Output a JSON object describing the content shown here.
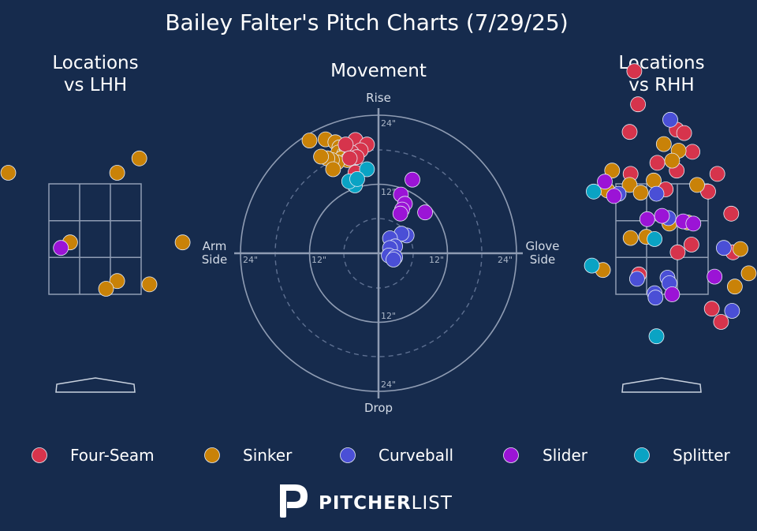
{
  "title": "Bailey Falter's Pitch Charts (7/29/25)",
  "panels": {
    "lhh_title": [
      "Locations",
      "vs LHH"
    ],
    "movement_title": "Movement",
    "rhh_title": [
      "Locations",
      "vs RHH"
    ]
  },
  "movement_labels": {
    "rise": "Rise",
    "drop": "Drop",
    "arm_side": [
      "Arm",
      "Side"
    ],
    "glove_side": [
      "Glove",
      "Side"
    ],
    "rings": [
      "12\"",
      "24\""
    ]
  },
  "colors": {
    "Four-Seam": "#d6344c",
    "Sinker": "#c98208",
    "Curveball": "#4a4fd6",
    "Slider": "#9b14d6",
    "Splitter": "#0aa3c4"
  },
  "legend": [
    "Four-Seam",
    "Sinker",
    "Curveball",
    "Slider",
    "Splitter"
  ],
  "brand": {
    "logo_icon": "pitcherlist-p-logo-icon",
    "part1": "PITCHER",
    "part2": "LIST"
  },
  "chart_data": [
    {
      "type": "scatter",
      "name": "locations-vs-lhh",
      "title": "Locations vs LHH",
      "zone": {
        "cols": 3,
        "rows": 3
      },
      "units": "zone widths from center (x), zone heights from center (y)",
      "points": [
        {
          "pitch": "Sinker",
          "x": -0.94,
          "y": 0.6
        },
        {
          "pitch": "Sinker",
          "x": 0.48,
          "y": 0.73
        },
        {
          "pitch": "Sinker",
          "x": 0.24,
          "y": 0.6
        },
        {
          "pitch": "Sinker",
          "x": -0.27,
          "y": -0.03
        },
        {
          "pitch": "Slider",
          "x": -0.37,
          "y": -0.08
        },
        {
          "pitch": "Sinker",
          "x": 0.95,
          "y": -0.03
        },
        {
          "pitch": "Sinker",
          "x": 0.24,
          "y": -0.38
        },
        {
          "pitch": "Sinker",
          "x": 0.12,
          "y": -0.45
        },
        {
          "pitch": "Sinker",
          "x": 0.59,
          "y": -0.41
        }
      ]
    },
    {
      "type": "scatter",
      "name": "movement",
      "title": "Movement",
      "units": "inches (x: arm side negative, glove side positive; y: rise positive)",
      "xlim": [
        -24,
        24
      ],
      "ylim": [
        -24,
        24
      ],
      "rings": [
        6,
        12,
        18,
        24
      ],
      "points": [
        {
          "pitch": "Sinker",
          "x": -12.0,
          "y": 19.6
        },
        {
          "pitch": "Sinker",
          "x": -9.2,
          "y": 19.8
        },
        {
          "pitch": "Sinker",
          "x": -7.5,
          "y": 19.3
        },
        {
          "pitch": "Sinker",
          "x": -6.8,
          "y": 18.4
        },
        {
          "pitch": "Sinker",
          "x": -7.0,
          "y": 17.5
        },
        {
          "pitch": "Sinker",
          "x": -6.0,
          "y": 17.2
        },
        {
          "pitch": "Sinker",
          "x": -5.5,
          "y": 18.1
        },
        {
          "pitch": "Sinker",
          "x": -6.4,
          "y": 16.5
        },
        {
          "pitch": "Sinker",
          "x": -5.4,
          "y": 16.2
        },
        {
          "pitch": "Sinker",
          "x": -4.7,
          "y": 16.7
        },
        {
          "pitch": "Sinker",
          "x": -7.2,
          "y": 15.8
        },
        {
          "pitch": "Sinker",
          "x": -8.1,
          "y": 16.2
        },
        {
          "pitch": "Sinker",
          "x": -8.9,
          "y": 16.5
        },
        {
          "pitch": "Sinker",
          "x": -10.0,
          "y": 16.8
        },
        {
          "pitch": "Sinker",
          "x": -7.9,
          "y": 14.6
        },
        {
          "pitch": "Sinker",
          "x": -4.5,
          "y": 17.5
        },
        {
          "pitch": "Four-Seam",
          "x": -4.0,
          "y": 19.7
        },
        {
          "pitch": "Four-Seam",
          "x": -2.0,
          "y": 18.9
        },
        {
          "pitch": "Four-Seam",
          "x": -3.1,
          "y": 17.9
        },
        {
          "pitch": "Four-Seam",
          "x": -4.7,
          "y": 17.5
        },
        {
          "pitch": "Four-Seam",
          "x": -5.7,
          "y": 18.9
        },
        {
          "pitch": "Four-Seam",
          "x": -3.8,
          "y": 16.7
        },
        {
          "pitch": "Four-Seam",
          "x": -5.0,
          "y": 16.5
        },
        {
          "pitch": "Four-Seam",
          "x": -4.0,
          "y": 14.0
        },
        {
          "pitch": "Splitter",
          "x": -2.0,
          "y": 14.6
        },
        {
          "pitch": "Splitter",
          "x": -4.1,
          "y": 11.8
        },
        {
          "pitch": "Splitter",
          "x": -5.1,
          "y": 12.5
        },
        {
          "pitch": "Splitter",
          "x": -3.7,
          "y": 12.9
        },
        {
          "pitch": "Slider",
          "x": 5.9,
          "y": 12.8
        },
        {
          "pitch": "Slider",
          "x": 3.9,
          "y": 10.2
        },
        {
          "pitch": "Slider",
          "x": 4.6,
          "y": 8.6
        },
        {
          "pitch": "Slider",
          "x": 4.1,
          "y": 7.6
        },
        {
          "pitch": "Slider",
          "x": 3.8,
          "y": 6.9
        },
        {
          "pitch": "Slider",
          "x": 8.1,
          "y": 7.1
        },
        {
          "pitch": "Curveball",
          "x": 4.9,
          "y": 3.1
        },
        {
          "pitch": "Curveball",
          "x": 4.0,
          "y": 3.4
        },
        {
          "pitch": "Curveball",
          "x": 2.0,
          "y": 2.6
        },
        {
          "pitch": "Curveball",
          "x": 2.9,
          "y": 1.2
        },
        {
          "pitch": "Curveball",
          "x": 2.0,
          "y": 0.9
        },
        {
          "pitch": "Curveball",
          "x": 1.8,
          "y": -0.4
        },
        {
          "pitch": "Curveball",
          "x": 2.9,
          "y": -0.7
        },
        {
          "pitch": "Curveball",
          "x": 2.6,
          "y": -1.1
        }
      ]
    },
    {
      "type": "scatter",
      "name": "locations-vs-rhh",
      "title": "Locations vs RHH",
      "zone": {
        "cols": 3,
        "rows": 3
      },
      "units": "zone widths from center (x), zone heights from center (y)",
      "points": [
        {
          "pitch": "Four-Seam",
          "x": -0.3,
          "y": 1.52
        },
        {
          "pitch": "Four-Seam",
          "x": -0.26,
          "y": 1.22
        },
        {
          "pitch": "Four-Seam",
          "x": -0.35,
          "y": 0.97
        },
        {
          "pitch": "Four-Seam",
          "x": 0.16,
          "y": 0.99
        },
        {
          "pitch": "Four-Seam",
          "x": 0.24,
          "y": 0.96
        },
        {
          "pitch": "Four-Seam",
          "x": 1.16,
          "y": 0.86
        },
        {
          "pitch": "Four-Seam",
          "x": 0.33,
          "y": 0.79
        },
        {
          "pitch": "Four-Seam",
          "x": -0.05,
          "y": 0.69
        },
        {
          "pitch": "Four-Seam",
          "x": 0.16,
          "y": 0.62
        },
        {
          "pitch": "Four-Seam",
          "x": -0.34,
          "y": 0.59
        },
        {
          "pitch": "Four-Seam",
          "x": 0.6,
          "y": 0.59
        },
        {
          "pitch": "Four-Seam",
          "x": 0.04,
          "y": 0.45
        },
        {
          "pitch": "Four-Seam",
          "x": 0.5,
          "y": 0.43
        },
        {
          "pitch": "Four-Seam",
          "x": 1.46,
          "y": 0.44
        },
        {
          "pitch": "Four-Seam",
          "x": 0.75,
          "y": 0.23
        },
        {
          "pitch": "Four-Seam",
          "x": 0.77,
          "y": -0.12
        },
        {
          "pitch": "Four-Seam",
          "x": 0.32,
          "y": -0.05
        },
        {
          "pitch": "Four-Seam",
          "x": 0.17,
          "y": -0.12
        },
        {
          "pitch": "Four-Seam",
          "x": -0.25,
          "y": -0.32
        },
        {
          "pitch": "Four-Seam",
          "x": 0.54,
          "y": -0.63
        },
        {
          "pitch": "Four-Seam",
          "x": 0.64,
          "y": -0.75
        },
        {
          "pitch": "Sinker",
          "x": 0.02,
          "y": 0.86
        },
        {
          "pitch": "Sinker",
          "x": 0.18,
          "y": 0.8
        },
        {
          "pitch": "Sinker",
          "x": 0.11,
          "y": 0.71
        },
        {
          "pitch": "Sinker",
          "x": -0.54,
          "y": 0.62
        },
        {
          "pitch": "Sinker",
          "x": -0.35,
          "y": 0.49
        },
        {
          "pitch": "Sinker",
          "x": -0.09,
          "y": 0.53
        },
        {
          "pitch": "Sinker",
          "x": -0.23,
          "y": 0.42
        },
        {
          "pitch": "Sinker",
          "x": 0.38,
          "y": 0.49
        },
        {
          "pitch": "Sinker",
          "x": -0.59,
          "y": 0.44
        },
        {
          "pitch": "Sinker",
          "x": 0.08,
          "y": 0.14
        },
        {
          "pitch": "Sinker",
          "x": 0.28,
          "y": 0.15
        },
        {
          "pitch": "Sinker",
          "x": -0.17,
          "y": 0.02
        },
        {
          "pitch": "Sinker",
          "x": -0.34,
          "y": 0.01
        },
        {
          "pitch": "Sinker",
          "x": 0.85,
          "y": -0.09
        },
        {
          "pitch": "Sinker",
          "x": 0.94,
          "y": -0.31
        },
        {
          "pitch": "Sinker",
          "x": -0.64,
          "y": -0.28
        },
        {
          "pitch": "Sinker",
          "x": 0.79,
          "y": -0.43
        },
        {
          "pitch": "Curveball",
          "x": 0.09,
          "y": 1.08
        },
        {
          "pitch": "Curveball",
          "x": -0.06,
          "y": 0.41
        },
        {
          "pitch": "Curveball",
          "x": -0.47,
          "y": 0.41
        },
        {
          "pitch": "Curveball",
          "x": 0.07,
          "y": 0.19
        },
        {
          "pitch": "Curveball",
          "x": 0.67,
          "y": -0.08
        },
        {
          "pitch": "Curveball",
          "x": 0.06,
          "y": -0.35
        },
        {
          "pitch": "Curveball",
          "x": -0.27,
          "y": -0.36
        },
        {
          "pitch": "Curveball",
          "x": 0.08,
          "y": -0.4
        },
        {
          "pitch": "Curveball",
          "x": -0.08,
          "y": -0.49
        },
        {
          "pitch": "Curveball",
          "x": -0.07,
          "y": -0.53
        },
        {
          "pitch": "Curveball",
          "x": 0.76,
          "y": -0.65
        },
        {
          "pitch": "Slider",
          "x": -0.62,
          "y": 0.52
        },
        {
          "pitch": "Slider",
          "x": -0.52,
          "y": 0.39
        },
        {
          "pitch": "Slider",
          "x": -0.16,
          "y": 0.18
        },
        {
          "pitch": "Slider",
          "x": 0.0,
          "y": 0.21
        },
        {
          "pitch": "Slider",
          "x": 0.23,
          "y": 0.16
        },
        {
          "pitch": "Slider",
          "x": 0.34,
          "y": 0.14
        },
        {
          "pitch": "Slider",
          "x": 0.57,
          "y": -0.34
        },
        {
          "pitch": "Slider",
          "x": 0.11,
          "y": -0.5
        },
        {
          "pitch": "Splitter",
          "x": -0.74,
          "y": 0.43
        },
        {
          "pitch": "Splitter",
          "x": -0.08,
          "y": 0.0
        },
        {
          "pitch": "Splitter",
          "x": -0.76,
          "y": -0.24
        },
        {
          "pitch": "Splitter",
          "x": -0.06,
          "y": -0.88
        }
      ]
    }
  ]
}
